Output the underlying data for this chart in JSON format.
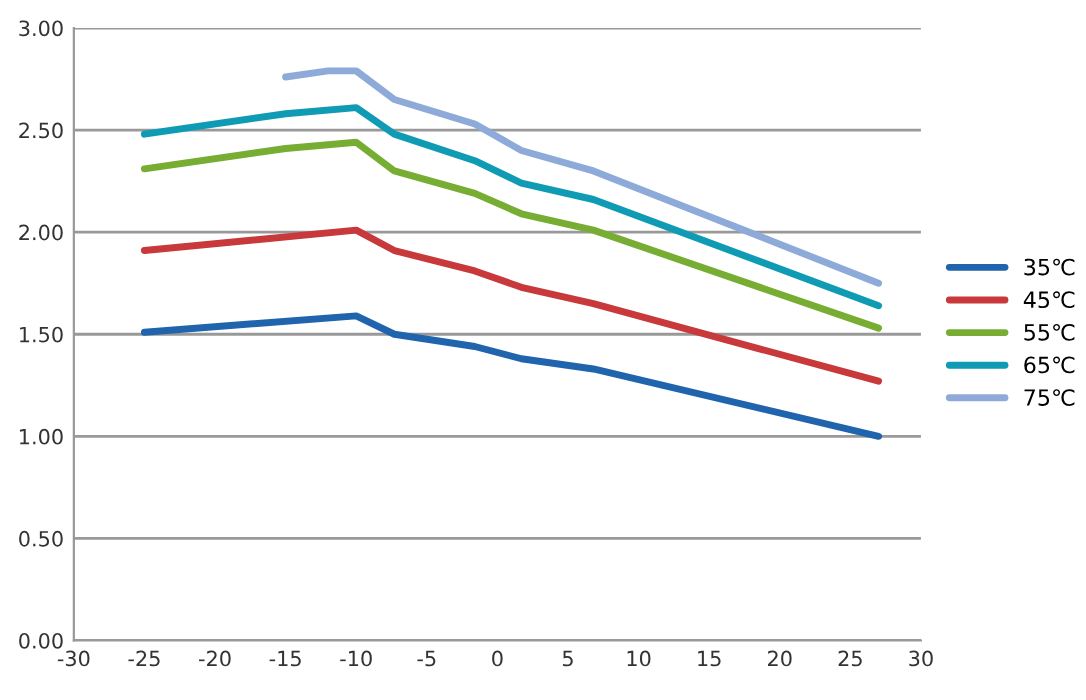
{
  "chart_data": {
    "type": "line",
    "series": [
      {
        "name": "35℃",
        "color": "#1f64ad",
        "x": [
          -25,
          -10,
          -7.3,
          -1.6,
          1.7,
          6.8,
          27
        ],
        "values": [
          1.51,
          1.59,
          1.5,
          1.44,
          1.38,
          1.33,
          1.0
        ]
      },
      {
        "name": "45℃",
        "color": "#c8393b",
        "x": [
          -25,
          -10,
          -7.3,
          -1.6,
          1.7,
          6.8,
          27
        ],
        "values": [
          1.91,
          2.01,
          1.91,
          1.81,
          1.73,
          1.65,
          1.27
        ]
      },
      {
        "name": "55℃",
        "color": "#78ad34",
        "x": [
          -25,
          -15,
          -10,
          -7.3,
          -1.6,
          1.7,
          6.8,
          27
        ],
        "values": [
          2.31,
          2.41,
          2.44,
          2.3,
          2.19,
          2.09,
          2.01,
          1.53
        ]
      },
      {
        "name": "65℃",
        "color": "#0f9bb3",
        "x": [
          -25,
          -15,
          -10,
          -7.3,
          -1.6,
          1.7,
          6.8,
          27
        ],
        "values": [
          2.48,
          2.58,
          2.61,
          2.48,
          2.35,
          2.24,
          2.16,
          1.64
        ]
      },
      {
        "name": "75℃",
        "color": "#8eaad8",
        "x": [
          -15,
          -12,
          -10,
          -7.3,
          -1.6,
          1.7,
          6.8,
          27
        ],
        "values": [
          2.76,
          2.79,
          2.79,
          2.65,
          2.53,
          2.4,
          2.3,
          1.75
        ]
      }
    ],
    "xlim": [
      -30,
      30
    ],
    "xticks": [
      -30,
      -25,
      -20,
      -15,
      -10,
      -5,
      0,
      5,
      10,
      15,
      20,
      25,
      30
    ],
    "ylim": [
      0,
      3
    ],
    "yticks": [
      {
        "value": 0,
        "label": "0.00"
      },
      {
        "value": 0.5,
        "label": "0.50"
      },
      {
        "value": 1,
        "label": "1.00"
      },
      {
        "value": 1.5,
        "label": "1.50"
      },
      {
        "value": 2,
        "label": "2.00"
      },
      {
        "value": 2.5,
        "label": "2.50"
      },
      {
        "value": 3,
        "label": "3.00"
      }
    ],
    "grid": "y",
    "legend": "right",
    "marker": "none",
    "line_style": "solid"
  }
}
